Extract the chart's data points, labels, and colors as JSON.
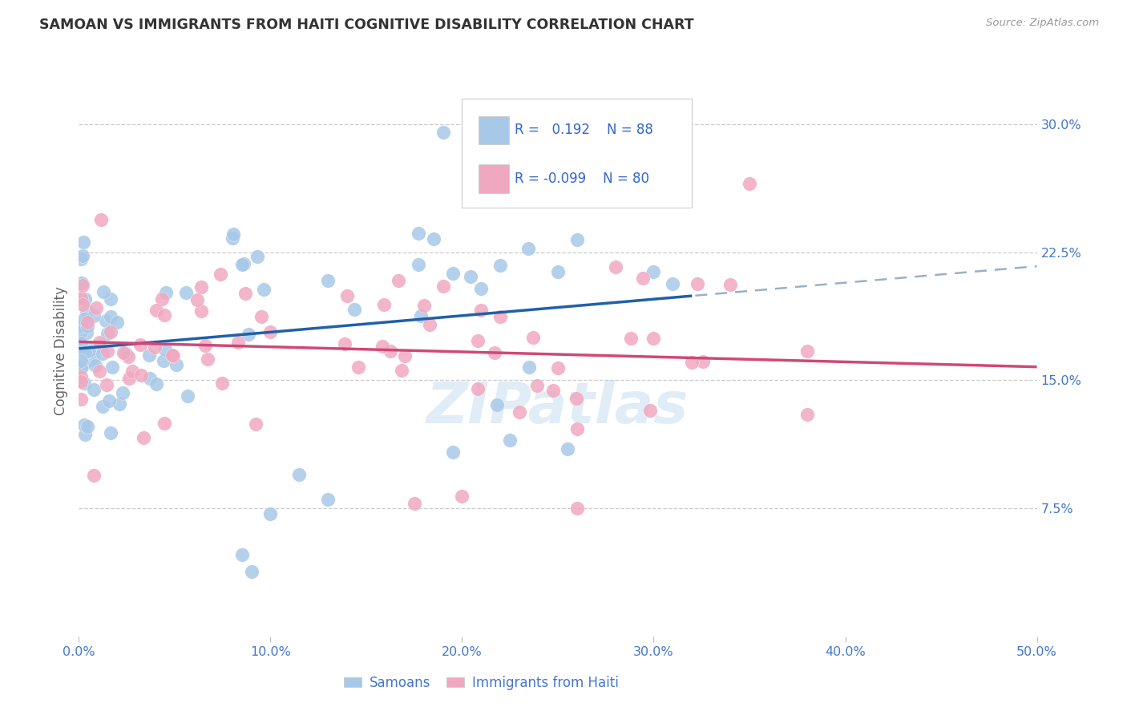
{
  "title": "SAMOAN VS IMMIGRANTS FROM HAITI COGNITIVE DISABILITY CORRELATION CHART",
  "source": "Source: ZipAtlas.com",
  "ylabel": "Cognitive Disability",
  "xlim": [
    0.0,
    0.5
  ],
  "ylim": [
    0.0,
    0.335
  ],
  "ytick_vals": [
    0.075,
    0.15,
    0.225,
    0.3
  ],
  "ytick_labels": [
    "7.5%",
    "15.0%",
    "22.5%",
    "30.0%"
  ],
  "xtick_vals": [
    0.0,
    0.1,
    0.2,
    0.3,
    0.4,
    0.5
  ],
  "xtick_labels": [
    "0.0%",
    "10.0%",
    "20.0%",
    "30.0%",
    "40.0%",
    "50.0%"
  ],
  "samoan_R": 0.192,
  "samoan_N": 88,
  "haiti_R": -0.099,
  "haiti_N": 80,
  "samoan_color": "#a8c8e8",
  "haiti_color": "#f0a8c0",
  "samoan_line_color": "#2060a8",
  "haiti_line_color": "#d04878",
  "dashed_color": "#9ab0c8",
  "background_color": "#ffffff",
  "grid_color": "#cccccc",
  "title_color": "#333333",
  "axis_label_color": "#666666",
  "tick_color": "#4477cc",
  "legend_text_color": "#3366cc",
  "legend_border_color": "#cccccc",
  "watermark_color": "#c8ddf0",
  "samoan_seed": 42,
  "haiti_seed": 99
}
